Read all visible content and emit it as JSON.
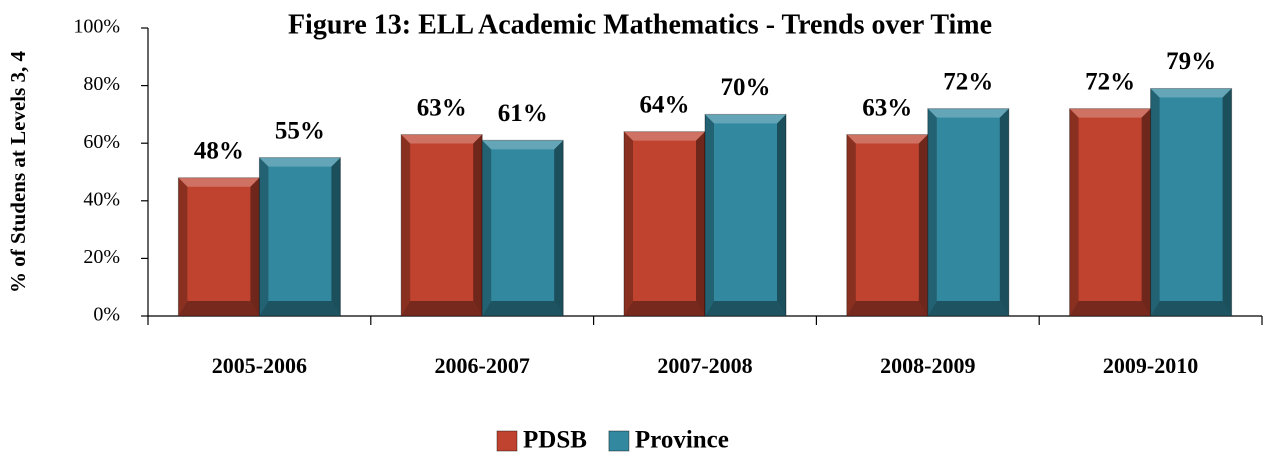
{
  "chart_data": {
    "type": "bar",
    "title": "Figure 13:  ELL Academic Mathematics - Trends over Time",
    "y_label": "% of Studens at Levels 3, 4",
    "categories": [
      "2005-2006",
      "2006-2007",
      "2007-2008",
      "2008-2009",
      "2009-2010"
    ],
    "series": [
      {
        "name": "PDSB",
        "color": "#c0432f",
        "values": [
          48,
          63,
          64,
          63,
          72
        ],
        "value_labels": [
          "48%",
          "63%",
          "64%",
          "63%",
          "72%"
        ]
      },
      {
        "name": "Province",
        "color": "#31889f",
        "values": [
          55,
          61,
          70,
          72,
          79
        ],
        "value_labels": [
          "55%",
          "61%",
          "70%",
          "72%",
          "79%"
        ]
      }
    ],
    "ylim": [
      0,
      100
    ],
    "yticks": [
      {
        "value": 0,
        "label": "0%"
      },
      {
        "value": 20,
        "label": "20%"
      },
      {
        "value": 40,
        "label": "40%"
      },
      {
        "value": 60,
        "label": "60%"
      },
      {
        "value": 80,
        "label": "80%"
      },
      {
        "value": 100,
        "label": "100%"
      }
    ],
    "legend": "bottom"
  }
}
